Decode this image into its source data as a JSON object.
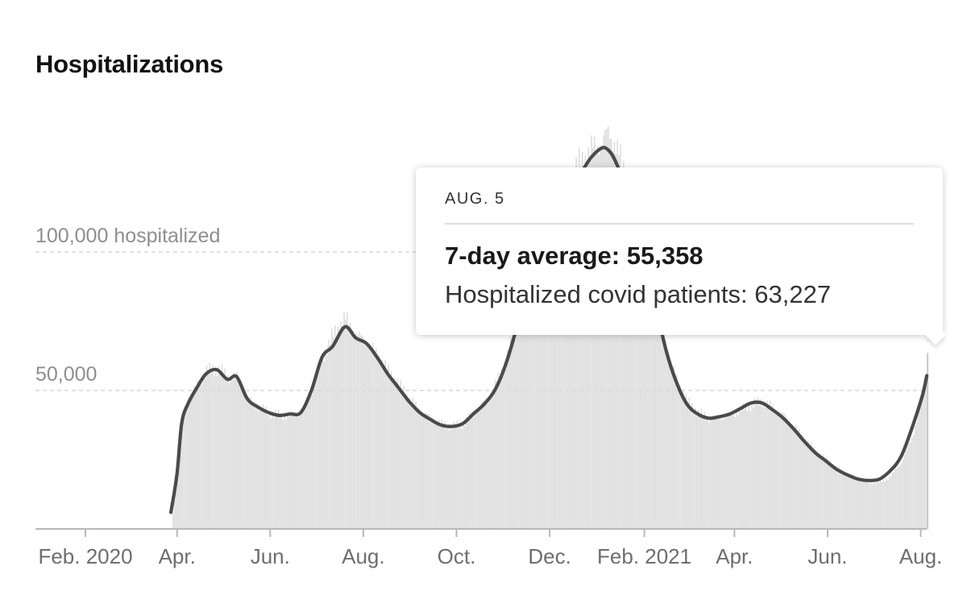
{
  "chart_data": {
    "type": "area",
    "title": "Hospitalizations",
    "unit": "hospitalized",
    "y_gridlines": [
      {
        "value": 50000,
        "label": "50,000"
      },
      {
        "value": 100000,
        "label": "100,000 hospitalized"
      }
    ],
    "x_ticks": [
      {
        "date": "2020-02-01",
        "label": "Feb. 2020"
      },
      {
        "date": "2020-04-01",
        "label": "Apr."
      },
      {
        "date": "2020-06-01",
        "label": "Jun."
      },
      {
        "date": "2020-08-01",
        "label": "Aug."
      },
      {
        "date": "2020-10-01",
        "label": "Oct."
      },
      {
        "date": "2020-12-01",
        "label": "Dec."
      },
      {
        "date": "2021-02-01",
        "label": "Feb. 2021"
      },
      {
        "date": "2021-04-01",
        "label": "Apr."
      },
      {
        "date": "2021-06-01",
        "label": "Jun."
      },
      {
        "date": "2021-08-01",
        "label": "Aug."
      }
    ],
    "xlim": [
      "2020-01-01",
      "2021-08-08"
    ],
    "ylim": [
      0,
      150000
    ],
    "series": [
      {
        "kind": "daily-bars",
        "color": "#dcdcdc",
        "points": [
          [
            "2020-03-28",
            0
          ],
          [
            "2020-03-29",
            6000
          ],
          [
            "2020-04-01",
            20000
          ],
          [
            "2020-04-04",
            38000
          ],
          [
            "2020-04-08",
            46000
          ],
          [
            "2020-04-14",
            52000
          ],
          [
            "2020-04-20",
            57000
          ],
          [
            "2020-04-27",
            58000
          ],
          [
            "2020-05-04",
            55000
          ],
          [
            "2020-05-10",
            55000
          ],
          [
            "2020-05-17",
            47000
          ],
          [
            "2020-05-24",
            44000
          ],
          [
            "2020-05-31",
            42000
          ],
          [
            "2020-06-07",
            41000
          ],
          [
            "2020-06-14",
            41000
          ],
          [
            "2020-06-21",
            42000
          ],
          [
            "2020-06-28",
            50000
          ],
          [
            "2020-07-05",
            62000
          ],
          [
            "2020-07-12",
            70000
          ],
          [
            "2020-07-20",
            76000
          ],
          [
            "2020-07-27",
            70000
          ],
          [
            "2020-08-03",
            68000
          ],
          [
            "2020-08-10",
            63000
          ],
          [
            "2020-08-17",
            57000
          ],
          [
            "2020-08-24",
            52000
          ],
          [
            "2020-08-31",
            47000
          ],
          [
            "2020-09-07",
            43000
          ],
          [
            "2020-09-14",
            40000
          ],
          [
            "2020-09-21",
            38000
          ],
          [
            "2020-09-28",
            37000
          ],
          [
            "2020-10-05",
            38000
          ],
          [
            "2020-10-12",
            42000
          ],
          [
            "2020-10-19",
            46000
          ],
          [
            "2020-10-26",
            52000
          ],
          [
            "2020-11-02",
            61000
          ],
          [
            "2020-11-09",
            73000
          ],
          [
            "2020-11-16",
            90000
          ],
          [
            "2020-11-23",
            100000
          ],
          [
            "2020-11-30",
            110000
          ],
          [
            "2020-12-07",
            118000
          ],
          [
            "2020-12-14",
            126000
          ],
          [
            "2020-12-21",
            132000
          ],
          [
            "2020-12-28",
            137000
          ],
          [
            "2021-01-04",
            140000
          ],
          [
            "2021-01-08",
            143000
          ],
          [
            "2021-01-12",
            140000
          ],
          [
            "2021-01-18",
            130000
          ],
          [
            "2021-01-25",
            116000
          ],
          [
            "2021-02-01",
            98000
          ],
          [
            "2021-02-08",
            82000
          ],
          [
            "2021-02-15",
            65000
          ],
          [
            "2021-02-22",
            54000
          ],
          [
            "2021-03-01",
            46000
          ],
          [
            "2021-03-08",
            42000
          ],
          [
            "2021-03-15",
            40000
          ],
          [
            "2021-03-22",
            40000
          ],
          [
            "2021-03-29",
            41000
          ],
          [
            "2021-04-05",
            43000
          ],
          [
            "2021-04-12",
            45000
          ],
          [
            "2021-04-19",
            46000
          ],
          [
            "2021-04-26",
            44000
          ],
          [
            "2021-05-03",
            41000
          ],
          [
            "2021-05-10",
            37000
          ],
          [
            "2021-05-17",
            32000
          ],
          [
            "2021-05-24",
            28000
          ],
          [
            "2021-05-31",
            25000
          ],
          [
            "2021-06-07",
            22000
          ],
          [
            "2021-06-14",
            20000
          ],
          [
            "2021-06-21",
            18000
          ],
          [
            "2021-06-28",
            17000
          ],
          [
            "2021-07-05",
            17000
          ],
          [
            "2021-07-12",
            19000
          ],
          [
            "2021-07-19",
            24000
          ],
          [
            "2021-07-26",
            33000
          ],
          [
            "2021-08-02",
            48000
          ],
          [
            "2021-08-05",
            63227
          ]
        ]
      },
      {
        "kind": "7-day-average-line",
        "color": "#4a4a4a",
        "points": [
          [
            "2020-03-28",
            6000
          ],
          [
            "2020-04-01",
            20000
          ],
          [
            "2020-04-04",
            38000
          ],
          [
            "2020-04-08",
            45000
          ],
          [
            "2020-04-14",
            51000
          ],
          [
            "2020-04-20",
            56000
          ],
          [
            "2020-04-27",
            57500
          ],
          [
            "2020-05-04",
            54000
          ],
          [
            "2020-05-10",
            55000
          ],
          [
            "2020-05-17",
            47000
          ],
          [
            "2020-05-24",
            44000
          ],
          [
            "2020-05-31",
            42000
          ],
          [
            "2020-06-07",
            41000
          ],
          [
            "2020-06-14",
            41500
          ],
          [
            "2020-06-21",
            42000
          ],
          [
            "2020-06-28",
            50000
          ],
          [
            "2020-07-05",
            62000
          ],
          [
            "2020-07-12",
            66000
          ],
          [
            "2020-07-20",
            73000
          ],
          [
            "2020-07-27",
            69000
          ],
          [
            "2020-08-03",
            67000
          ],
          [
            "2020-08-10",
            62000
          ],
          [
            "2020-08-17",
            56000
          ],
          [
            "2020-08-24",
            51000
          ],
          [
            "2020-08-31",
            46000
          ],
          [
            "2020-09-07",
            42000
          ],
          [
            "2020-09-14",
            39500
          ],
          [
            "2020-09-21",
            37500
          ],
          [
            "2020-09-28",
            37000
          ],
          [
            "2020-10-05",
            38000
          ],
          [
            "2020-10-12",
            41500
          ],
          [
            "2020-10-19",
            45000
          ],
          [
            "2020-10-26",
            50000
          ],
          [
            "2020-11-02",
            59000
          ],
          [
            "2020-11-09",
            72000
          ],
          [
            "2020-11-16",
            88000
          ],
          [
            "2020-11-23",
            100000
          ],
          [
            "2020-11-30",
            108000
          ],
          [
            "2020-12-07",
            115000
          ],
          [
            "2020-12-14",
            122000
          ],
          [
            "2020-12-21",
            128000
          ],
          [
            "2020-12-28",
            134000
          ],
          [
            "2021-01-04",
            137500
          ],
          [
            "2021-01-08",
            137000
          ],
          [
            "2021-01-12",
            134000
          ],
          [
            "2021-01-18",
            126000
          ],
          [
            "2021-01-25",
            114000
          ],
          [
            "2021-02-01",
            98000
          ],
          [
            "2021-02-08",
            82000
          ],
          [
            "2021-02-15",
            65000
          ],
          [
            "2021-02-22",
            53000
          ],
          [
            "2021-03-01",
            45000
          ],
          [
            "2021-03-08",
            41500
          ],
          [
            "2021-03-15",
            40000
          ],
          [
            "2021-03-22",
            40500
          ],
          [
            "2021-03-29",
            41500
          ],
          [
            "2021-04-05",
            43500
          ],
          [
            "2021-04-12",
            45500
          ],
          [
            "2021-04-19",
            45500
          ],
          [
            "2021-04-26",
            43000
          ],
          [
            "2021-05-03",
            40000
          ],
          [
            "2021-05-10",
            36000
          ],
          [
            "2021-05-17",
            31500
          ],
          [
            "2021-05-24",
            27500
          ],
          [
            "2021-05-31",
            24500
          ],
          [
            "2021-06-07",
            21500
          ],
          [
            "2021-06-14",
            19500
          ],
          [
            "2021-06-21",
            18000
          ],
          [
            "2021-06-28",
            17500
          ],
          [
            "2021-07-05",
            18000
          ],
          [
            "2021-07-12",
            21000
          ],
          [
            "2021-07-19",
            26000
          ],
          [
            "2021-07-26",
            36000
          ],
          [
            "2021-08-02",
            48000
          ],
          [
            "2021-08-05",
            55358
          ]
        ]
      }
    ]
  },
  "tooltip": {
    "date": "AUG. 5",
    "avg_text": "7-day average: 55,358",
    "count_text": "Hospitalized covid patients: 63,227"
  },
  "colors": {
    "bars": "#dcdcdc",
    "line": "#4a4a4a",
    "axis": "#b8b8b8",
    "gridline": "#d0d0d0"
  }
}
